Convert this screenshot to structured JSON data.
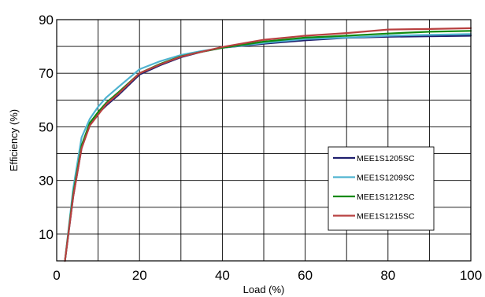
{
  "chart_data": {
    "type": "line",
    "xlabel": "Load (%)",
    "ylabel": "Efficiency (%)",
    "xlim": [
      0,
      100
    ],
    "ylim": [
      0,
      90
    ],
    "x_ticks": [
      0,
      20,
      40,
      60,
      80,
      100
    ],
    "y_ticks": [
      10,
      30,
      50,
      70,
      90
    ],
    "grid": true,
    "legend_position": "right",
    "series": [
      {
        "name": "MEE1S1205SC",
        "color": "#1f1f6e",
        "x": [
          2,
          4,
          6,
          8,
          10,
          12,
          15,
          20,
          25,
          30,
          35,
          40,
          50,
          60,
          70,
          80,
          90,
          100
        ],
        "y": [
          0,
          24,
          42,
          51,
          55,
          58,
          62,
          69.5,
          73,
          76,
          78,
          79.5,
          81,
          82.3,
          83.2,
          83.6,
          83.8,
          84
        ]
      },
      {
        "name": "MEE1S1209SC",
        "color": "#4fb3d0",
        "x": [
          2,
          4,
          6,
          8,
          10,
          12,
          15,
          20,
          25,
          30,
          35,
          40,
          50,
          60,
          70,
          80,
          90,
          100
        ],
        "y": [
          0,
          27,
          46,
          53,
          57.5,
          61,
          65,
          71.5,
          74.5,
          76.8,
          78.3,
          79.5,
          81.3,
          82.8,
          83.3,
          84,
          84.3,
          84.6
        ]
      },
      {
        "name": "MEE1S1212SC",
        "color": "#108a10",
        "x": [
          2,
          4,
          6,
          8,
          10,
          12,
          15,
          20,
          25,
          30,
          35,
          40,
          50,
          60,
          70,
          80,
          90,
          100
        ],
        "y": [
          0,
          25,
          43,
          51.5,
          55.5,
          59,
          63,
          70,
          73.5,
          76.3,
          78,
          79.5,
          81.8,
          83.3,
          84,
          84.8,
          85.5,
          85.8
        ]
      },
      {
        "name": "MEE1S1215SC",
        "color": "#b84040",
        "x": [
          2,
          4,
          6,
          8,
          10,
          12,
          15,
          20,
          25,
          30,
          35,
          40,
          50,
          60,
          70,
          80,
          90,
          100
        ],
        "y": [
          0,
          24,
          42,
          50.5,
          54.5,
          58.5,
          62.5,
          70,
          73.3,
          76.2,
          78,
          79.8,
          82.5,
          84,
          85,
          86.3,
          86.5,
          86.8
        ]
      }
    ]
  }
}
